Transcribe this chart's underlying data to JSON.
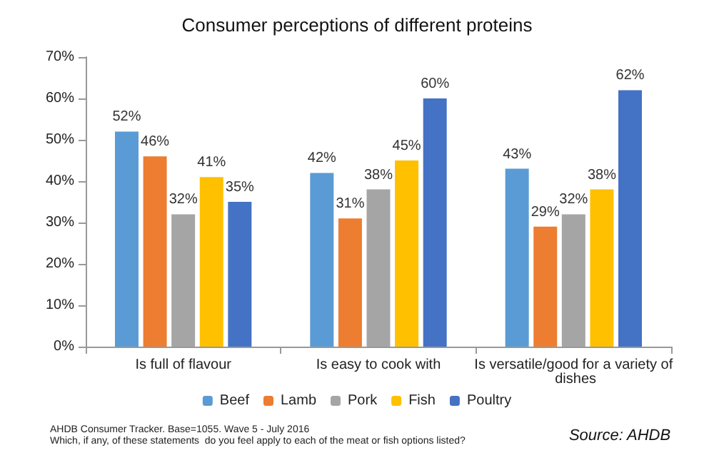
{
  "chart_data": {
    "type": "bar",
    "title": "Consumer perceptions of different proteins",
    "categories": [
      "Is full of flavour",
      "Is easy to cook with",
      "Is versatile/good for a variety of dishes"
    ],
    "series": [
      {
        "name": "Beef",
        "color": "#5b9bd5",
        "values": [
          52,
          42,
          43
        ],
        "value_labels": [
          "52%",
          "42%",
          "43%"
        ]
      },
      {
        "name": "Lamb",
        "color": "#ed7d31",
        "values": [
          46,
          31,
          29
        ],
        "value_labels": [
          "46%",
          "31%",
          "29%"
        ]
      },
      {
        "name": "Pork",
        "color": "#a5a5a5",
        "values": [
          32,
          38,
          32
        ],
        "value_labels": [
          "32%",
          "38%",
          "32%"
        ]
      },
      {
        "name": "Fish",
        "color": "#ffc000",
        "values": [
          41,
          45,
          38
        ],
        "value_labels": [
          "41%",
          "45%",
          "38%"
        ]
      },
      {
        "name": "Poultry",
        "color": "#4472c4",
        "values": [
          35,
          60,
          62
        ],
        "value_labels": [
          "35%",
          "60%",
          "62%"
        ]
      }
    ],
    "ylim": [
      0,
      70
    ],
    "yticks": [
      {
        "value": 0,
        "label": "0%"
      },
      {
        "value": 10,
        "label": "10%"
      },
      {
        "value": 20,
        "label": "20%"
      },
      {
        "value": 30,
        "label": "30%"
      },
      {
        "value": 40,
        "label": "40%"
      },
      {
        "value": 50,
        "label": "50%"
      },
      {
        "value": 60,
        "label": "60%"
      },
      {
        "value": 70,
        "label": "70%"
      }
    ],
    "grid": false,
    "legend": "bottom",
    "annotations": [
      "AHDB Consumer Tracker. Base=1055. Wave 5 - July 2016",
      "Which, if any, of these statements  do you feel apply to each of the meat or fish options listed?",
      "Source: AHDB"
    ]
  }
}
